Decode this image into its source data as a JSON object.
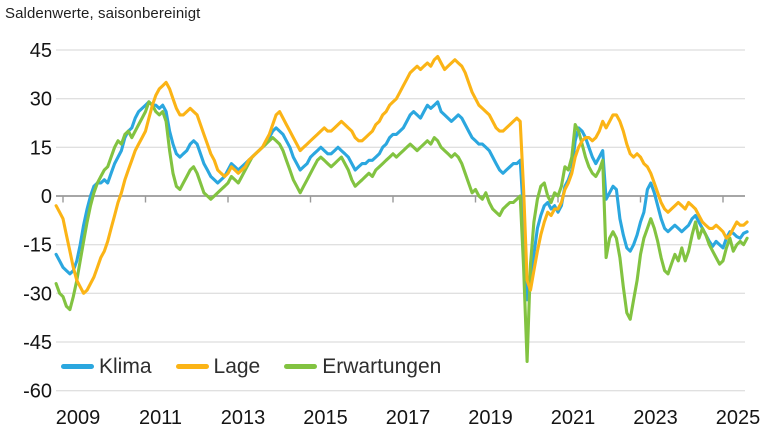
{
  "chart_data": {
    "type": "line",
    "title": "Saldenwerte, saisonbereinigt",
    "frequency": "monthly",
    "x_start": "2008-11",
    "x_end": "2025-08",
    "x_tick_years": [
      2009,
      2011,
      2013,
      2015,
      2017,
      2019,
      2021,
      2023,
      2025
    ],
    "y_ticks": [
      45,
      30,
      15,
      0,
      -15,
      -30,
      -45,
      -60
    ],
    "ylim": [
      -60,
      45
    ],
    "grid": true,
    "legend_position": "bottom-left",
    "z_order": [
      "Klima",
      "Erwartungen",
      "Lage"
    ],
    "colors": {
      "klima": "#2BA7DF",
      "lage": "#FBB416",
      "erwartungen": "#82C341",
      "gridline": "#d6d6d6",
      "zero_axis": "#9a9a9a"
    },
    "series": [
      {
        "name": "Klima",
        "color": "#2BA7DF",
        "values": [
          -18,
          -20,
          -22,
          -23,
          -24,
          -23,
          -20,
          -15,
          -9,
          -4,
          0,
          3,
          4,
          4,
          5,
          4,
          7,
          10,
          12,
          14,
          18,
          20,
          21,
          24,
          26,
          27,
          28,
          29,
          28,
          28,
          27,
          28,
          26,
          20,
          16,
          13,
          12,
          13,
          14,
          16,
          17,
          16,
          13,
          10,
          8,
          6,
          5,
          4,
          5,
          6,
          8,
          10,
          9,
          8,
          9,
          10,
          11,
          12,
          13,
          14,
          15,
          16,
          18,
          20,
          21,
          20,
          19,
          17,
          15,
          12,
          10,
          8,
          9,
          10,
          12,
          13,
          14,
          15,
          14,
          13,
          13,
          14,
          15,
          14,
          13,
          12,
          10,
          8,
          9,
          10,
          10,
          11,
          11,
          12,
          13,
          15,
          16,
          18,
          19,
          19,
          20,
          21,
          23,
          25,
          26,
          25,
          24,
          26,
          28,
          27,
          28,
          29,
          26,
          25,
          24,
          23,
          24,
          25,
          24,
          22,
          20,
          18,
          17,
          16,
          16,
          15,
          14,
          12,
          10,
          8,
          7,
          8,
          9,
          10,
          10,
          11,
          -6,
          -32,
          -27,
          -18,
          -10,
          -6,
          -3,
          -2,
          -4,
          -3,
          -5,
          -3,
          3,
          5,
          8,
          17,
          21,
          20,
          18,
          15,
          12,
          10,
          12,
          14,
          -1,
          1,
          3,
          2,
          -7,
          -12,
          -16,
          -17,
          -15,
          -12,
          -8,
          -5,
          2,
          4,
          1,
          -3,
          -7,
          -10,
          -11,
          -10,
          -9,
          -10,
          -11,
          -10,
          -9,
          -7,
          -6,
          -8,
          -10,
          -12,
          -14,
          -15.5,
          -14,
          -15,
          -16,
          -13,
          -11,
          -11.5,
          -12.5,
          -13,
          -11.5,
          -11
        ]
      },
      {
        "name": "Lage",
        "color": "#FBB416",
        "values": [
          -3,
          -5,
          -7,
          -12,
          -17,
          -22,
          -26,
          -28,
          -30,
          -29,
          -27,
          -25,
          -22,
          -19,
          -17,
          -14,
          -10,
          -6,
          -2,
          1,
          5,
          8,
          11,
          14,
          16,
          18,
          20,
          24,
          28,
          31,
          33,
          34,
          35,
          33,
          30,
          27,
          25,
          25,
          26,
          27,
          26,
          25,
          22,
          19,
          16,
          13,
          11,
          8,
          7,
          6,
          7,
          9,
          8,
          7,
          8,
          9,
          11,
          12,
          13,
          14,
          15,
          17,
          19,
          22,
          25,
          26,
          24,
          22,
          20,
          18,
          16,
          14,
          15,
          16,
          17,
          18,
          19,
          20,
          21,
          20,
          20,
          21,
          22,
          23,
          22,
          21,
          20,
          18,
          17,
          17,
          18,
          19,
          20,
          22,
          23,
          25,
          26,
          28,
          29,
          30,
          32,
          34,
          36,
          38,
          39,
          40,
          39,
          40,
          41,
          40,
          42,
          43,
          41,
          39,
          40,
          41,
          42,
          41,
          40,
          38,
          35,
          32,
          30,
          28,
          27,
          26,
          25,
          23,
          21,
          20,
          20,
          21,
          22,
          23,
          24,
          23,
          2,
          -26,
          -29,
          -23,
          -17,
          -12,
          -8,
          -5,
          -6,
          -4,
          -4,
          -2,
          2,
          4,
          7,
          12,
          15,
          17,
          18,
          18,
          17,
          18,
          20,
          23,
          21,
          23,
          25,
          25,
          23,
          20,
          16,
          13,
          12,
          13,
          12,
          10,
          9,
          7,
          4,
          1,
          -2,
          -4,
          -5,
          -4,
          -3,
          -2,
          -3,
          -4,
          -2,
          -3,
          -4,
          -6,
          -8,
          -9,
          -10,
          -10,
          -9,
          -10,
          -11,
          -13,
          -12,
          -10,
          -8,
          -9,
          -9,
          -8
        ]
      },
      {
        "name": "Erwartungen",
        "color": "#82C341",
        "values": [
          -27,
          -30,
          -31,
          -34,
          -35,
          -31,
          -26,
          -20,
          -14,
          -8,
          -3,
          1,
          4,
          6,
          8,
          9,
          12,
          15,
          17,
          16,
          19,
          20,
          18,
          20,
          22,
          24,
          26,
          29,
          28,
          26,
          25,
          26,
          23,
          14,
          7,
          3,
          2,
          4,
          6,
          8,
          9,
          7,
          4,
          1,
          0,
          -1,
          0,
          1,
          2,
          3,
          4,
          6,
          5,
          4,
          6,
          8,
          10,
          12,
          13,
          14,
          15,
          16,
          17,
          18,
          17,
          16,
          14,
          11,
          8,
          5,
          3,
          1,
          3,
          5,
          7,
          9,
          11,
          12,
          11,
          10,
          9,
          10,
          11,
          12,
          10,
          8,
          5,
          3,
          4,
          5,
          6,
          7,
          6,
          8,
          9,
          10,
          11,
          12,
          13,
          12,
          13,
          14,
          15,
          16,
          15,
          14,
          15,
          16,
          17,
          16,
          18,
          17,
          15,
          14,
          13,
          12,
          13,
          12,
          10,
          7,
          4,
          1,
          2,
          0,
          -1,
          1,
          -2,
          -4,
          -5,
          -6,
          -4,
          -3,
          -2,
          -2,
          -1,
          0,
          -22,
          -51,
          -21,
          -8,
          -1,
          3,
          4,
          0,
          -2,
          1,
          0,
          3,
          9,
          8,
          12,
          22,
          20,
          16,
          12,
          9,
          7,
          6,
          8,
          11,
          -19,
          -13,
          -11,
          -13,
          -19,
          -28,
          -36,
          -38,
          -32,
          -26,
          -18,
          -13,
          -10,
          -7,
          -10,
          -14,
          -19,
          -23,
          -24,
          -21,
          -18,
          -20,
          -16,
          -20,
          -17,
          -12,
          -8,
          -13,
          -10,
          -12,
          -15,
          -17,
          -19,
          -21,
          -20,
          -16,
          -13,
          -17,
          -15,
          -14,
          -15,
          -13
        ]
      }
    ]
  }
}
